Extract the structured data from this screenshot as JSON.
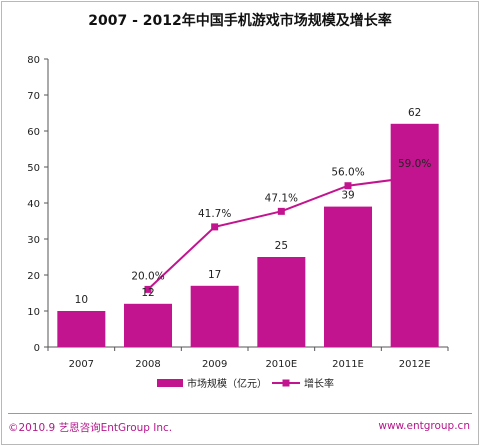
{
  "chart_data": {
    "type": "bar",
    "title": "2007 - 2012年中国手机游戏市场规模及增长率",
    "categories": [
      "2007",
      "2008",
      "2009",
      "2010E",
      "2011E",
      "2012E"
    ],
    "ylim": [
      0,
      80
    ],
    "yticks": [
      0,
      10,
      20,
      30,
      40,
      50,
      60,
      70,
      80
    ],
    "series": [
      {
        "name": "市场规模（亿元）",
        "type": "bar",
        "values": [
          10,
          12,
          17,
          25,
          39,
          62
        ],
        "labels": [
          "10",
          "12",
          "17",
          "25",
          "39",
          "62"
        ],
        "color": "#c2148f"
      },
      {
        "name": "增长率",
        "type": "line",
        "values": [
          null,
          20.0,
          41.7,
          47.1,
          56.0,
          59.0
        ],
        "labels": [
          null,
          "20.0%",
          "41.7%",
          "47.1%",
          "56.0%",
          "59.0%"
        ],
        "color": "#c2148f"
      }
    ],
    "legend_position": "bottom",
    "grid": false
  },
  "footer": {
    "left": "©2010.9 艺恩咨询EntGroup Inc.",
    "right": "www.entgroup.cn"
  }
}
